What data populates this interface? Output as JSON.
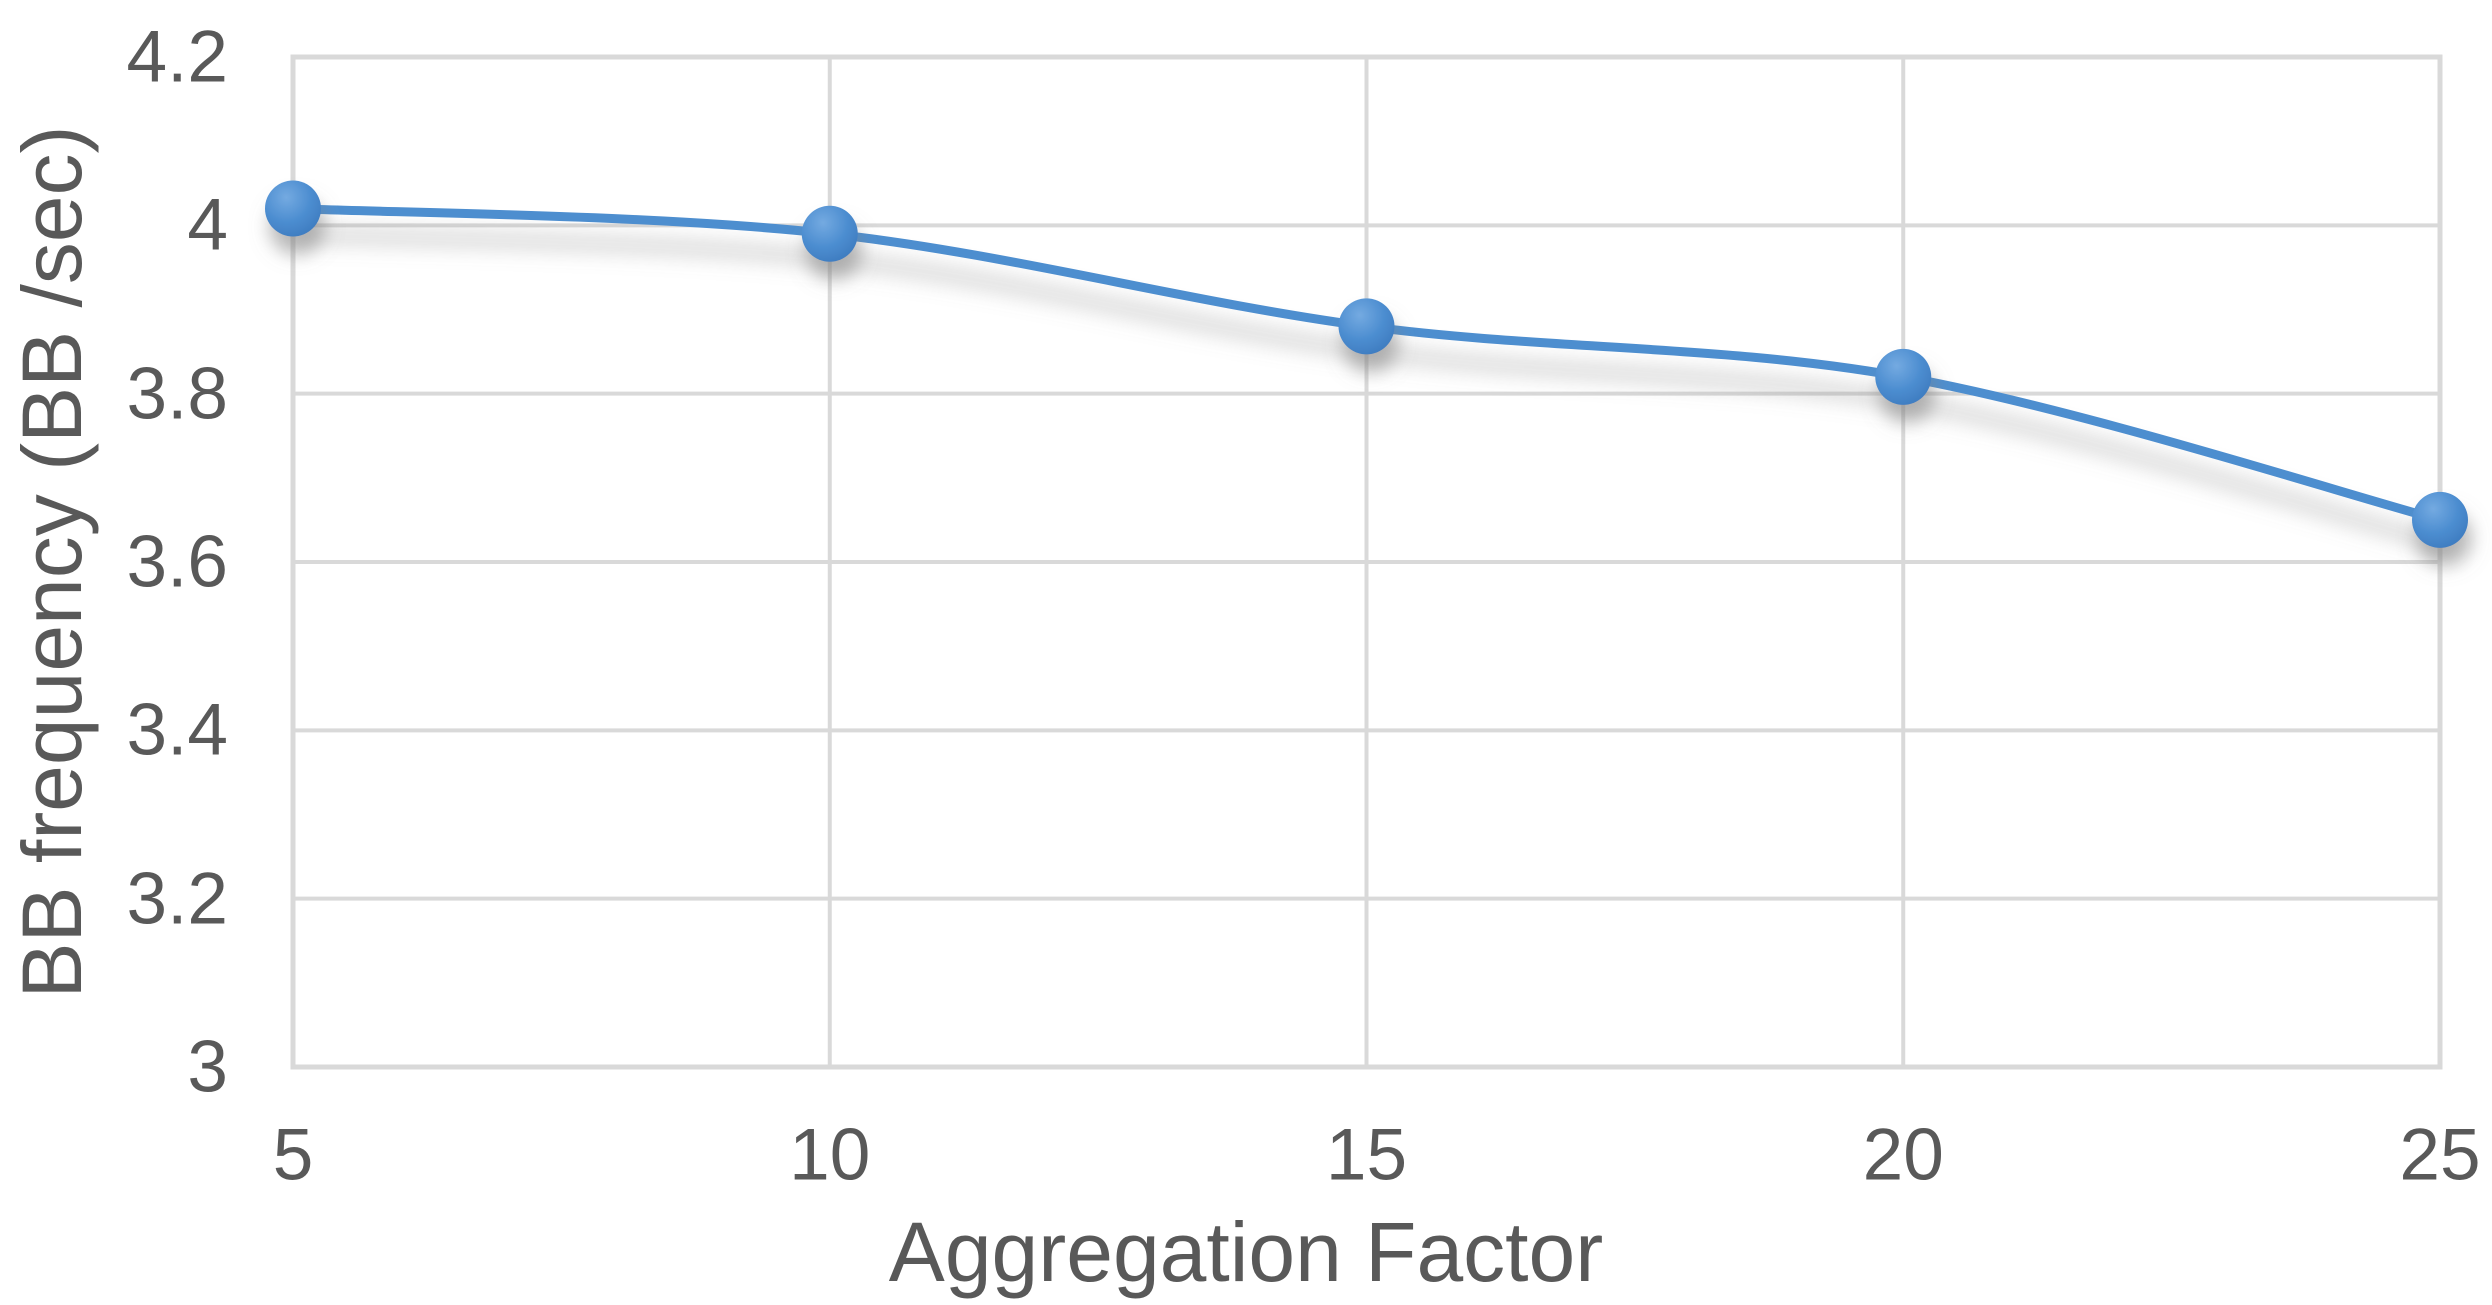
{
  "chart_data": {
    "type": "line",
    "title": "",
    "xlabel": "Aggregation Factor",
    "ylabel": "BB frequency (BB /sec)",
    "x": [
      5,
      10,
      15,
      20,
      25
    ],
    "series": [
      {
        "values": [
          4.02,
          3.99,
          3.88,
          3.82,
          3.65
        ]
      }
    ],
    "xlim": [
      5,
      25
    ],
    "ylim": [
      3.0,
      4.2
    ],
    "xticks": [
      {
        "value": 5,
        "label": "5"
      },
      {
        "value": 10,
        "label": "10"
      },
      {
        "value": 15,
        "label": "15"
      },
      {
        "value": 20,
        "label": "20"
      },
      {
        "value": 25,
        "label": "25"
      }
    ],
    "yticks": [
      {
        "value": 3.0,
        "label": "3"
      },
      {
        "value": 3.2,
        "label": "3.2"
      },
      {
        "value": 3.4,
        "label": "3.4"
      },
      {
        "value": 3.6,
        "label": "3.6"
      },
      {
        "value": 3.8,
        "label": "3.8"
      },
      {
        "value": 4.0,
        "label": "4"
      },
      {
        "value": 4.2,
        "label": "4.2"
      }
    ],
    "grid": true,
    "legend_position": "none",
    "marker": "circle",
    "smooth": true
  },
  "colors": {
    "background": "#FFFFFF",
    "text": "#595959",
    "grid": "#D9D9D9",
    "line": "#4E8ECF",
    "marker_light": "#74AAE1",
    "marker_mid": "#4C8DD0",
    "marker_dark": "#3C79BD",
    "shadow": "#808080"
  }
}
